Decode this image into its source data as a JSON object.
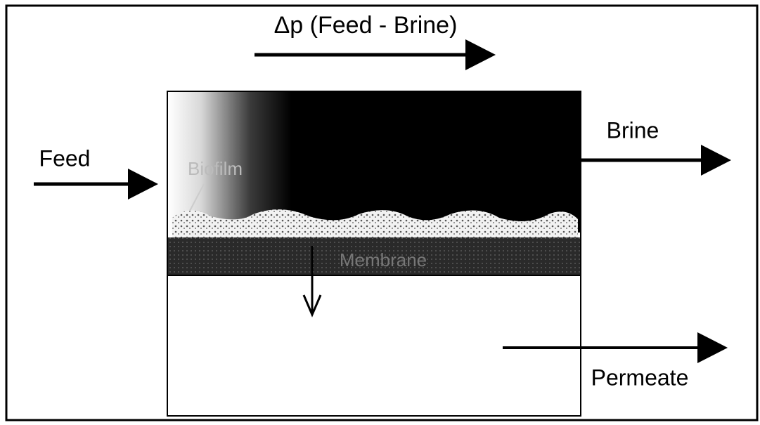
{
  "labels": {
    "pressure_drop": "Δp (Feed - Brine)",
    "feed": "Feed",
    "brine": "Brine",
    "permeate": "Permeate",
    "biofilm": "Biofilm",
    "membrane": "Membrane"
  }
}
